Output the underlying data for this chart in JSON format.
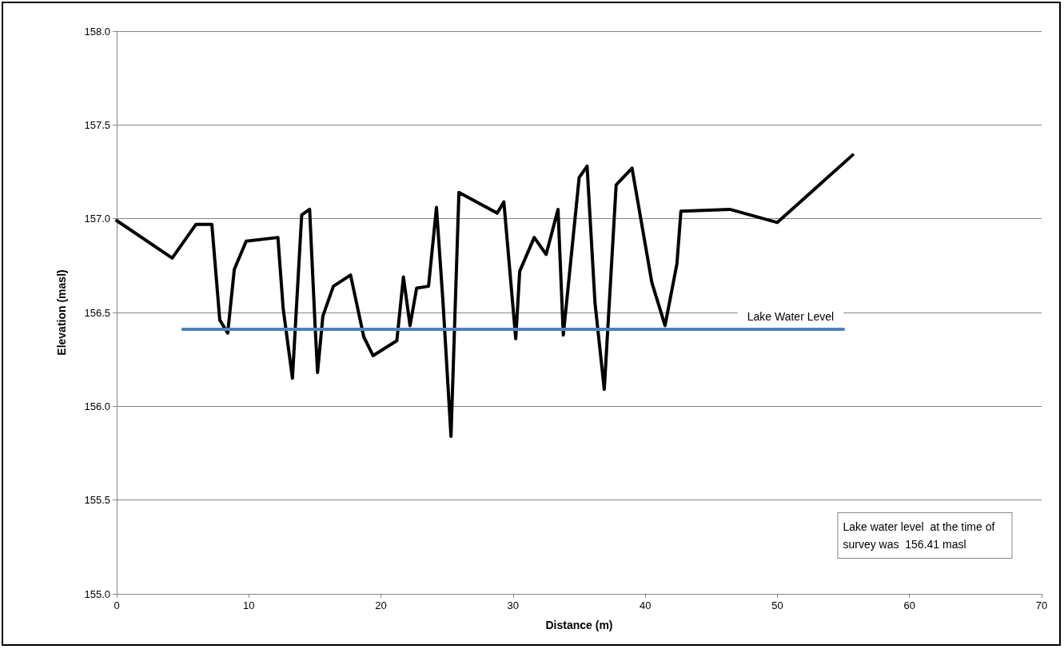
{
  "chart_data": {
    "type": "line",
    "xlabel": "Distance (m)",
    "ylabel": "Elevation (masl)",
    "xlim": [
      0,
      70
    ],
    "xticks": [
      0,
      10,
      20,
      30,
      40,
      50,
      60,
      70
    ],
    "ylim": [
      155,
      158
    ],
    "yticks": [
      {
        "value": 155,
        "label": "155.0"
      },
      {
        "value": 155.5,
        "label": "155.5"
      },
      {
        "value": 156,
        "label": "156.0"
      },
      {
        "value": 156.5,
        "label": "156.5"
      },
      {
        "value": 157,
        "label": "157.0"
      },
      {
        "value": 157.5,
        "label": "157.5"
      },
      {
        "value": 158,
        "label": "158.0"
      }
    ],
    "grid": "y",
    "legend": false,
    "marker": "none",
    "line_style": "solid",
    "series": [
      {
        "color": "#000000",
        "x": [
          0,
          4.2,
          6.0,
          7.2,
          7.8,
          8.4,
          8.9,
          9.8,
          12.2,
          12.6,
          13.3,
          14.0,
          14.6,
          15.0,
          15.2,
          15.6,
          16.4,
          17.7,
          18.7,
          19.4,
          21.2,
          21.7,
          22.2,
          22.7,
          23.6,
          24.2,
          24.7,
          25.3,
          25.9,
          28.8,
          29.3,
          30.2,
          30.5,
          31.6,
          32.5,
          33.4,
          33.8,
          35.0,
          35.6,
          36.2,
          36.9,
          37.8,
          39.0,
          40.5,
          41.5,
          42.4,
          42.7,
          46.4,
          50.0,
          55.7
        ],
        "values": [
          156.99,
          156.79,
          156.97,
          156.97,
          156.46,
          156.39,
          156.73,
          156.88,
          156.9,
          156.52,
          156.15,
          157.02,
          157.05,
          156.45,
          156.18,
          156.48,
          156.64,
          156.7,
          156.37,
          156.27,
          156.35,
          156.69,
          156.43,
          156.63,
          156.64,
          157.06,
          156.55,
          155.84,
          157.14,
          157.03,
          157.09,
          156.36,
          156.72,
          156.9,
          156.81,
          157.05,
          156.38,
          157.22,
          157.28,
          156.55,
          156.09,
          157.18,
          157.27,
          156.66,
          156.43,
          156.76,
          157.04,
          157.05,
          156.98,
          157.34
        ]
      },
      {
        "name": "Lake Water Level",
        "color": "#4f81bd",
        "x": [
          5,
          55
        ],
        "values": [
          156.41,
          156.41
        ]
      }
    ],
    "annotations": [
      "Lake water level  at the time of survey was  156.41 masl"
    ]
  }
}
